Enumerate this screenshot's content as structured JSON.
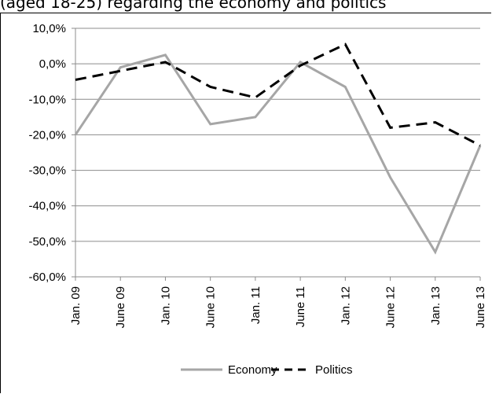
{
  "chart_data": {
    "type": "line",
    "title": "(aged 18-25) regarding the economy and politics",
    "categories": [
      "Jan. 09",
      "June 09",
      "Jan. 10",
      "June 10",
      "Jan. 11",
      "June 11",
      "Jan. 12",
      "June 12",
      "Jan. 13",
      "June 13"
    ],
    "y_ticks": [
      "10,0%",
      "0,0%",
      "-10,0%",
      "-20,0%",
      "-30,0%",
      "-40,0%",
      "-50,0%",
      "-60,0%"
    ],
    "ylim": [
      -60,
      10
    ],
    "grid": true,
    "legend_position": "bottom",
    "series": [
      {
        "name": "Economy",
        "color": "#a6a6a6",
        "style": "solid",
        "values": [
          -20.0,
          -1.0,
          2.5,
          -17.0,
          -15.0,
          0.5,
          -6.5,
          -32.0,
          -53.0,
          -23.0
        ]
      },
      {
        "name": "Politics",
        "color": "#000000",
        "style": "dashed",
        "values": [
          -4.5,
          -2.0,
          0.5,
          -6.5,
          -9.5,
          -0.5,
          5.5,
          -18.0,
          -16.5,
          -23.0
        ]
      }
    ]
  }
}
